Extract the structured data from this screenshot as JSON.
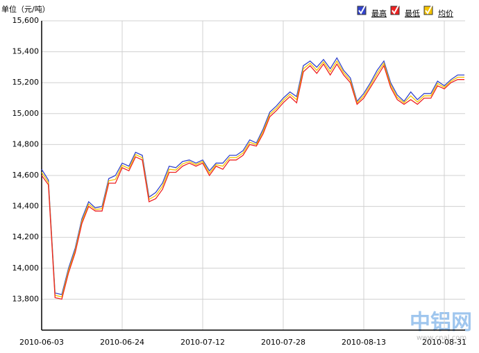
{
  "chart_data": {
    "type": "line",
    "unit_label": "单位（元/吨）",
    "categories": [
      "2010-06-03",
      null,
      null,
      null,
      null,
      null,
      null,
      null,
      null,
      null,
      null,
      null,
      "2010-06-24",
      null,
      null,
      null,
      null,
      null,
      null,
      null,
      null,
      null,
      null,
      null,
      "2010-07-12",
      null,
      null,
      null,
      null,
      null,
      null,
      null,
      null,
      null,
      null,
      null,
      "2010-07-28",
      null,
      null,
      null,
      null,
      null,
      null,
      null,
      null,
      null,
      null,
      null,
      "2010-08-13",
      null,
      null,
      null,
      null,
      null,
      null,
      null,
      null,
      null,
      null,
      null,
      "2010-08-31",
      null,
      null,
      null
    ],
    "series": [
      {
        "name": "最高",
        "color": "#3344cc",
        "values": [
          14640,
          14570,
          13840,
          13830,
          14000,
          14130,
          14320,
          14430,
          14390,
          14400,
          14580,
          14600,
          14680,
          14660,
          14750,
          14730,
          14460,
          14490,
          14550,
          14660,
          14650,
          14690,
          14700,
          14680,
          14700,
          14630,
          14680,
          14680,
          14730,
          14730,
          14760,
          14830,
          14810,
          14900,
          15010,
          15050,
          15100,
          15140,
          15110,
          15310,
          15340,
          15300,
          15350,
          15290,
          15360,
          15280,
          15230,
          15080,
          15130,
          15200,
          15280,
          15340,
          15200,
          15120,
          15080,
          15140,
          15090,
          15130,
          15130,
          15210,
          15180,
          15220,
          15250,
          15250
        ]
      },
      {
        "name": "最低",
        "color": "#ee2222",
        "values": [
          14600,
          14540,
          13810,
          13800,
          13970,
          14100,
          14290,
          14400,
          14370,
          14370,
          14550,
          14550,
          14650,
          14630,
          14720,
          14700,
          14430,
          14450,
          14510,
          14620,
          14620,
          14660,
          14680,
          14660,
          14680,
          14600,
          14660,
          14640,
          14700,
          14700,
          14730,
          14800,
          14790,
          14870,
          14980,
          15020,
          15070,
          15110,
          15070,
          15270,
          15310,
          15260,
          15320,
          15250,
          15320,
          15250,
          15200,
          15060,
          15100,
          15170,
          15240,
          15310,
          15170,
          15090,
          15060,
          15090,
          15060,
          15100,
          15100,
          15180,
          15160,
          15200,
          15220,
          15220
        ]
      },
      {
        "name": "均价",
        "color": "#f5c400",
        "values": [
          14620,
          14555,
          13825,
          13815,
          13985,
          14115,
          14305,
          14415,
          14380,
          14385,
          14565,
          14575,
          14665,
          14645,
          14735,
          14715,
          14445,
          14470,
          14530,
          14640,
          14635,
          14675,
          14690,
          14670,
          14690,
          14615,
          14670,
          14660,
          14715,
          14715,
          14745,
          14815,
          14800,
          14885,
          14995,
          15035,
          15085,
          15125,
          15090,
          15290,
          15325,
          15280,
          15335,
          15270,
          15340,
          15265,
          15215,
          15070,
          15115,
          15185,
          15260,
          15325,
          15185,
          15105,
          15070,
          15115,
          15075,
          15115,
          15115,
          15195,
          15170,
          15210,
          15235,
          15235
        ]
      }
    ],
    "ylim": [
      13600,
      15600
    ],
    "yticks": [
      {
        "value": 13800,
        "label": "13,800"
      },
      {
        "value": 14000,
        "label": "14,000"
      },
      {
        "value": 14200,
        "label": "14,200"
      },
      {
        "value": 14400,
        "label": "14,400"
      },
      {
        "value": 14600,
        "label": "14,600"
      },
      {
        "value": 14800,
        "label": "14,800"
      },
      {
        "value": 15000,
        "label": "15,000"
      },
      {
        "value": 15200,
        "label": "15,200"
      },
      {
        "value": 15400,
        "label": "15,400"
      },
      {
        "value": 15600,
        "label": "15,600"
      }
    ],
    "grid": true,
    "legend": "top-right",
    "watermark": "中铝网",
    "watermark_url": "www.cnal.com"
  }
}
